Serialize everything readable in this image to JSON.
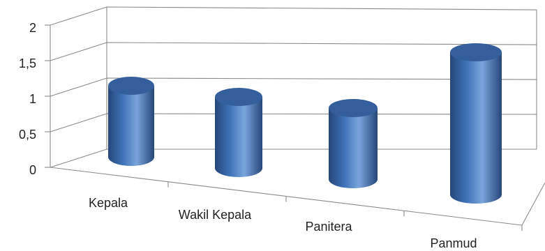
{
  "chart_data": {
    "type": "bar",
    "style": "3d-cylinder",
    "categories": [
      "Kepala",
      "Wakil Kepala",
      "Panitera",
      "Panmud"
    ],
    "values": [
      1,
      1,
      1,
      2
    ],
    "ylim": [
      0,
      2
    ],
    "yticks": [
      "0",
      "0,5",
      "1",
      "1,5",
      "2"
    ],
    "grid": true,
    "legend": "none",
    "colors": {
      "bar": "#3f73b8",
      "bar_dark": "#26467a",
      "bar_light": "#7aa5dc",
      "bar_top": "#345f9c",
      "grid": "#8a8a8a"
    }
  }
}
